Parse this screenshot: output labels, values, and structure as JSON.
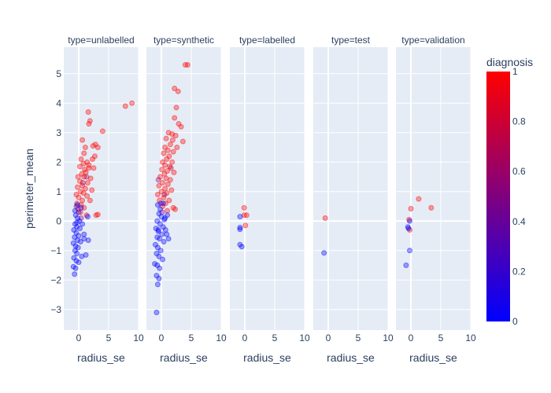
{
  "chart_data": {
    "type": "scatter",
    "facet_by": "type",
    "x_title": "radius_se",
    "y_title": "perimeter_mean",
    "xlim": [
      -2.5,
      10
    ],
    "ylim": [
      -3.7,
      5.9
    ],
    "x_ticks": [
      0,
      5,
      10
    ],
    "x_tick_labels": [
      "0",
      "5",
      "10"
    ],
    "y_ticks": [
      -3,
      -2,
      -1,
      0,
      1,
      2,
      3,
      4,
      5
    ],
    "y_tick_labels": [
      "−3",
      "−2",
      "−1",
      "0",
      "1",
      "2",
      "3",
      "4",
      "5"
    ],
    "color": {
      "title": "diagnosis",
      "range": [
        0,
        1
      ],
      "ticks": [
        0,
        0.2,
        0.4,
        0.6,
        0.8,
        1
      ],
      "tick_labels": [
        "0",
        "0.2",
        "0.4",
        "0.6",
        "0.8",
        "1"
      ],
      "colorscale": [
        "#0000ff",
        "#ff0000"
      ]
    },
    "facets": [
      {
        "title": "type=unlabelled",
        "points": [
          [
            7.8,
            3.9,
            1
          ],
          [
            8.9,
            4.0,
            1
          ],
          [
            4.0,
            3.05,
            1
          ],
          [
            1.6,
            3.7,
            1
          ],
          [
            1.9,
            3.4,
            1
          ],
          [
            1.7,
            3.3,
            1
          ],
          [
            2.8,
            2.6,
            1
          ],
          [
            3.2,
            2.5,
            1
          ],
          [
            2.4,
            2.55,
            1
          ],
          [
            0.6,
            2.75,
            1
          ],
          [
            1.1,
            2.5,
            1
          ],
          [
            0.9,
            2.3,
            1
          ],
          [
            2.7,
            2.2,
            1
          ],
          [
            2.3,
            2.1,
            1
          ],
          [
            1.4,
            2.0,
            1
          ],
          [
            0.4,
            2.1,
            1
          ],
          [
            0.8,
            1.95,
            1
          ],
          [
            1.7,
            1.8,
            1
          ],
          [
            2.5,
            1.8,
            1
          ],
          [
            1.2,
            1.65,
            1
          ],
          [
            0.5,
            1.6,
            1
          ],
          [
            -0.1,
            1.5,
            1
          ],
          [
            0.9,
            1.5,
            1
          ],
          [
            2.0,
            1.45,
            1
          ],
          [
            0.2,
            1.35,
            1
          ],
          [
            1.5,
            1.3,
            1
          ],
          [
            0.6,
            1.2,
            1
          ],
          [
            -0.2,
            1.15,
            1
          ],
          [
            1.1,
            1.1,
            1
          ],
          [
            2.2,
            1.05,
            1
          ],
          [
            0.3,
            1.0,
            1
          ],
          [
            0.8,
            0.95,
            1
          ],
          [
            -0.4,
            0.9,
            1
          ],
          [
            1.4,
            0.85,
            1
          ],
          [
            0.0,
            0.8,
            1
          ],
          [
            0.6,
            0.7,
            1
          ],
          [
            1.9,
            0.7,
            1
          ],
          [
            -0.3,
            0.6,
            1
          ],
          [
            0.4,
            0.55,
            1
          ],
          [
            0.9,
            0.45,
            1
          ],
          [
            -0.1,
            0.4,
            1
          ],
          [
            0.3,
            0.3,
            1
          ],
          [
            2.9,
            0.2,
            1
          ],
          [
            3.2,
            0.22,
            1
          ],
          [
            1.3,
            0.2,
            1
          ],
          [
            1.7,
            1.9,
            1
          ],
          [
            1.0,
            1.75,
            1
          ],
          [
            0.2,
            1.85,
            1
          ],
          [
            1.3,
            1.5,
            0.7
          ],
          [
            0.7,
            1.3,
            0.7
          ],
          [
            -0.4,
            0.5,
            0.6
          ],
          [
            0.4,
            0.1,
            0.5
          ],
          [
            0.0,
            0.3,
            0.3
          ],
          [
            -0.5,
            0.2,
            0
          ],
          [
            -0.2,
            0.1,
            0
          ],
          [
            0.1,
            0.0,
            0
          ],
          [
            -0.6,
            -0.1,
            0
          ],
          [
            -0.3,
            -0.2,
            0
          ],
          [
            0.2,
            -0.25,
            0
          ],
          [
            -0.8,
            -0.3,
            0
          ],
          [
            -0.4,
            -0.4,
            0
          ],
          [
            0.0,
            -0.5,
            0
          ],
          [
            -0.7,
            -0.55,
            0
          ],
          [
            -0.2,
            -0.65,
            0
          ],
          [
            0.3,
            -0.7,
            0
          ],
          [
            -0.9,
            -0.75,
            0
          ],
          [
            -0.5,
            -0.85,
            0
          ],
          [
            -0.1,
            -0.9,
            0
          ],
          [
            -0.6,
            -1.0,
            0
          ],
          [
            -0.3,
            -1.1,
            0
          ],
          [
            0.5,
            -1.2,
            0
          ],
          [
            -0.8,
            -1.25,
            0
          ],
          [
            -0.4,
            -1.35,
            0
          ],
          [
            0.0,
            -1.4,
            0
          ],
          [
            -0.9,
            -1.55,
            0
          ],
          [
            -0.5,
            -1.6,
            0
          ],
          [
            -0.7,
            -1.8,
            0
          ],
          [
            1.2,
            -1.15,
            0
          ],
          [
            1.6,
            -0.65,
            0
          ],
          [
            0.9,
            -0.6,
            0
          ],
          [
            1.5,
            0.15,
            0
          ],
          [
            0.4,
            0.45,
            0
          ],
          [
            -0.2,
            0.55,
            0
          ],
          [
            -0.6,
            0.35,
            0
          ],
          [
            0.6,
            -0.1,
            0
          ],
          [
            -0.3,
            -0.05,
            0
          ],
          [
            0.9,
            -0.45,
            0
          ]
        ]
      },
      {
        "title": "type=synthetic",
        "points": [
          [
            4.0,
            5.3,
            1
          ],
          [
            4.4,
            5.3,
            1
          ],
          [
            2.2,
            4.5,
            1
          ],
          [
            2.8,
            4.4,
            1
          ],
          [
            2.5,
            3.85,
            1
          ],
          [
            2.2,
            3.5,
            1
          ],
          [
            3.3,
            3.2,
            1
          ],
          [
            2.9,
            3.3,
            1
          ],
          [
            1.8,
            2.95,
            1
          ],
          [
            1.2,
            3.0,
            1
          ],
          [
            2.4,
            2.9,
            1
          ],
          [
            0.8,
            2.8,
            1
          ],
          [
            1.9,
            2.75,
            1
          ],
          [
            3.6,
            2.7,
            1
          ],
          [
            1.5,
            2.6,
            1
          ],
          [
            0.6,
            2.5,
            1
          ],
          [
            2.6,
            2.5,
            1
          ],
          [
            1.1,
            2.4,
            1
          ],
          [
            0.4,
            2.3,
            1
          ],
          [
            2.0,
            2.35,
            1
          ],
          [
            1.3,
            2.2,
            1
          ],
          [
            0.9,
            2.1,
            1
          ],
          [
            0.2,
            2.0,
            1
          ],
          [
            1.8,
            2.0,
            1
          ],
          [
            0.6,
            1.9,
            1
          ],
          [
            1.4,
            1.85,
            1
          ],
          [
            0.1,
            1.75,
            1
          ],
          [
            1.0,
            1.7,
            1
          ],
          [
            2.1,
            1.65,
            1
          ],
          [
            0.5,
            1.6,
            1
          ],
          [
            -0.2,
            1.5,
            1
          ],
          [
            0.8,
            1.45,
            1
          ],
          [
            1.5,
            1.4,
            1
          ],
          [
            0.2,
            1.3,
            1
          ],
          [
            1.1,
            1.25,
            1
          ],
          [
            -0.4,
            1.2,
            1
          ],
          [
            0.6,
            1.1,
            1
          ],
          [
            1.7,
            1.05,
            1
          ],
          [
            0.0,
            1.0,
            1
          ],
          [
            0.9,
            0.95,
            1
          ],
          [
            -0.6,
            0.9,
            1
          ],
          [
            0.4,
            0.8,
            1
          ],
          [
            1.3,
            0.7,
            1
          ],
          [
            -0.3,
            0.7,
            1
          ],
          [
            0.7,
            0.6,
            1
          ],
          [
            0.2,
            0.5,
            1
          ],
          [
            2.0,
            0.45,
            1
          ],
          [
            1.0,
            0.35,
            1
          ],
          [
            2.3,
            0.4,
            1
          ],
          [
            1.6,
            1.8,
            0.8
          ],
          [
            0.5,
            0.9,
            0.7
          ],
          [
            -0.5,
            1.4,
            0.6
          ],
          [
            0.1,
            0.3,
            0.5
          ],
          [
            -0.1,
            0.6,
            0.4
          ],
          [
            -0.4,
            0.25,
            0
          ],
          [
            0.0,
            0.15,
            0
          ],
          [
            0.5,
            0.05,
            0
          ],
          [
            -0.7,
            0.0,
            0
          ],
          [
            -0.2,
            -0.1,
            0
          ],
          [
            0.3,
            -0.2,
            0
          ],
          [
            -0.9,
            -0.25,
            0
          ],
          [
            -0.5,
            -0.35,
            0
          ],
          [
            0.1,
            -0.45,
            0
          ],
          [
            -0.7,
            -0.55,
            0
          ],
          [
            -0.3,
            -0.6,
            0
          ],
          [
            0.4,
            -0.7,
            0
          ],
          [
            -1.0,
            -0.8,
            0
          ],
          [
            -0.6,
            -0.9,
            0
          ],
          [
            -0.1,
            -1.0,
            0
          ],
          [
            -0.8,
            -1.1,
            0
          ],
          [
            -0.4,
            -1.2,
            0
          ],
          [
            0.2,
            -1.3,
            0
          ],
          [
            -1.1,
            -1.45,
            0
          ],
          [
            -0.7,
            -1.5,
            0
          ],
          [
            -0.3,
            -1.6,
            0
          ],
          [
            -0.8,
            -1.85,
            0
          ],
          [
            -0.4,
            -1.95,
            0
          ],
          [
            -0.6,
            -2.15,
            0
          ],
          [
            -0.8,
            -3.1,
            0
          ],
          [
            1.2,
            -0.6,
            0
          ],
          [
            0.9,
            -0.45,
            0
          ],
          [
            1.0,
            0.2,
            0
          ],
          [
            0.6,
            0.1,
            0
          ],
          [
            -0.2,
            0.4,
            0
          ],
          [
            -0.6,
            0.55,
            0
          ],
          [
            0.3,
            0.6,
            0
          ],
          [
            0.7,
            -0.3,
            0
          ],
          [
            -0.5,
            -0.3,
            0
          ]
        ]
      },
      {
        "title": "type=labelled",
        "points": [
          [
            -0.1,
            0.45,
            1
          ],
          [
            0.3,
            0.2,
            1
          ],
          [
            -0.1,
            0.2,
            1
          ],
          [
            0.1,
            -0.15,
            1
          ],
          [
            -0.8,
            0.15,
            0
          ],
          [
            -0.8,
            -0.22,
            0
          ],
          [
            -0.8,
            -0.28,
            0
          ],
          [
            -0.8,
            -0.8,
            0
          ],
          [
            -0.5,
            -0.87,
            0
          ]
        ]
      },
      {
        "title": "type=test",
        "points": [
          [
            -0.5,
            0.1,
            1
          ],
          [
            -0.7,
            -1.08,
            0
          ]
        ]
      },
      {
        "title": "type=validation",
        "points": [
          [
            1.3,
            0.75,
            1
          ],
          [
            3.4,
            0.45,
            1
          ],
          [
            0.0,
            0.42,
            1
          ],
          [
            -0.3,
            0.05,
            1
          ],
          [
            -0.2,
            -0.3,
            1
          ],
          [
            -0.5,
            -0.2,
            0
          ],
          [
            -0.2,
            0.0,
            0
          ],
          [
            -0.4,
            -0.25,
            0
          ],
          [
            -0.2,
            -1.0,
            0
          ],
          [
            -0.8,
            -1.5,
            0
          ]
        ]
      }
    ]
  }
}
